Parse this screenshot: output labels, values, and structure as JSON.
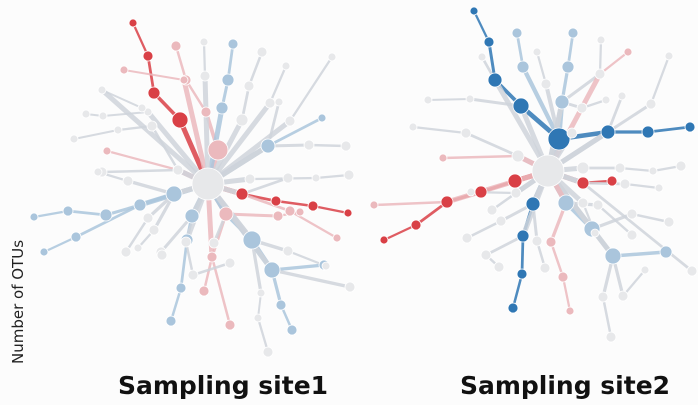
{
  "y_axis_label": "Number of OTUs",
  "sites": [
    {
      "title": "Sampling site1"
    },
    {
      "title": "Sampling site2"
    }
  ],
  "colors": {
    "background": "#fcfcfc",
    "neutral_node": "#e7e8ea",
    "neutral_edge": "#cfd4da",
    "red_strong": "#d94046",
    "red_light": "#ebb9bd",
    "blue_strong": "#2f77b4",
    "blue_light": "#aac5dc"
  }
}
